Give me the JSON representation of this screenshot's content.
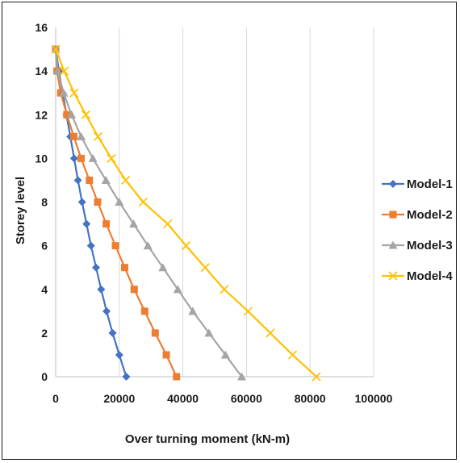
{
  "chart_data": {
    "type": "line",
    "xlabel": "Over turning moment (kN-m)",
    "ylabel": "Storey level",
    "xlim": [
      0,
      100000
    ],
    "ylim": [
      0,
      16
    ],
    "x_ticks": [
      0,
      20000,
      40000,
      60000,
      80000,
      100000
    ],
    "y_ticks": [
      0,
      2,
      4,
      6,
      8,
      10,
      12,
      14,
      16
    ],
    "x_tick_labels": [
      "0",
      "20000",
      "40000",
      "60000",
      "80000",
      "100000"
    ],
    "y_tick_labels": [
      "0",
      "2",
      "4",
      "6",
      "8",
      "10",
      "12",
      "14",
      "16"
    ],
    "grid": "vertical",
    "legend_position": "right",
    "storeys": [
      0,
      1,
      2,
      3,
      4,
      5,
      6,
      7,
      8,
      9,
      10,
      11,
      12,
      13,
      14,
      15
    ],
    "series": [
      {
        "name": "Model-1",
        "color": "#4472c4",
        "marker": "diamond",
        "x": [
          22200,
          20000,
          17900,
          16000,
          14300,
          12700,
          11100,
          9700,
          8300,
          7000,
          5800,
          4600,
          3400,
          2200,
          1000,
          0
        ]
      },
      {
        "name": "Model-2",
        "color": "#ed7d31",
        "marker": "square",
        "x": [
          38000,
          34800,
          31300,
          28000,
          24700,
          21700,
          18800,
          15900,
          13200,
          10600,
          8000,
          5700,
          3500,
          1600,
          400,
          0
        ]
      },
      {
        "name": "Model-3",
        "color": "#a5a5a5",
        "marker": "triangle",
        "x": [
          58500,
          53400,
          48200,
          43100,
          38400,
          33700,
          29000,
          24500,
          20000,
          15800,
          11700,
          8000,
          5000,
          2500,
          600,
          0
        ]
      },
      {
        "name": "Model-4",
        "color": "#ffc000",
        "marker": "x",
        "x": [
          82000,
          74500,
          67500,
          60500,
          53000,
          47000,
          41000,
          35200,
          27500,
          22000,
          17500,
          13300,
          9500,
          5800,
          2700,
          0
        ]
      }
    ]
  }
}
